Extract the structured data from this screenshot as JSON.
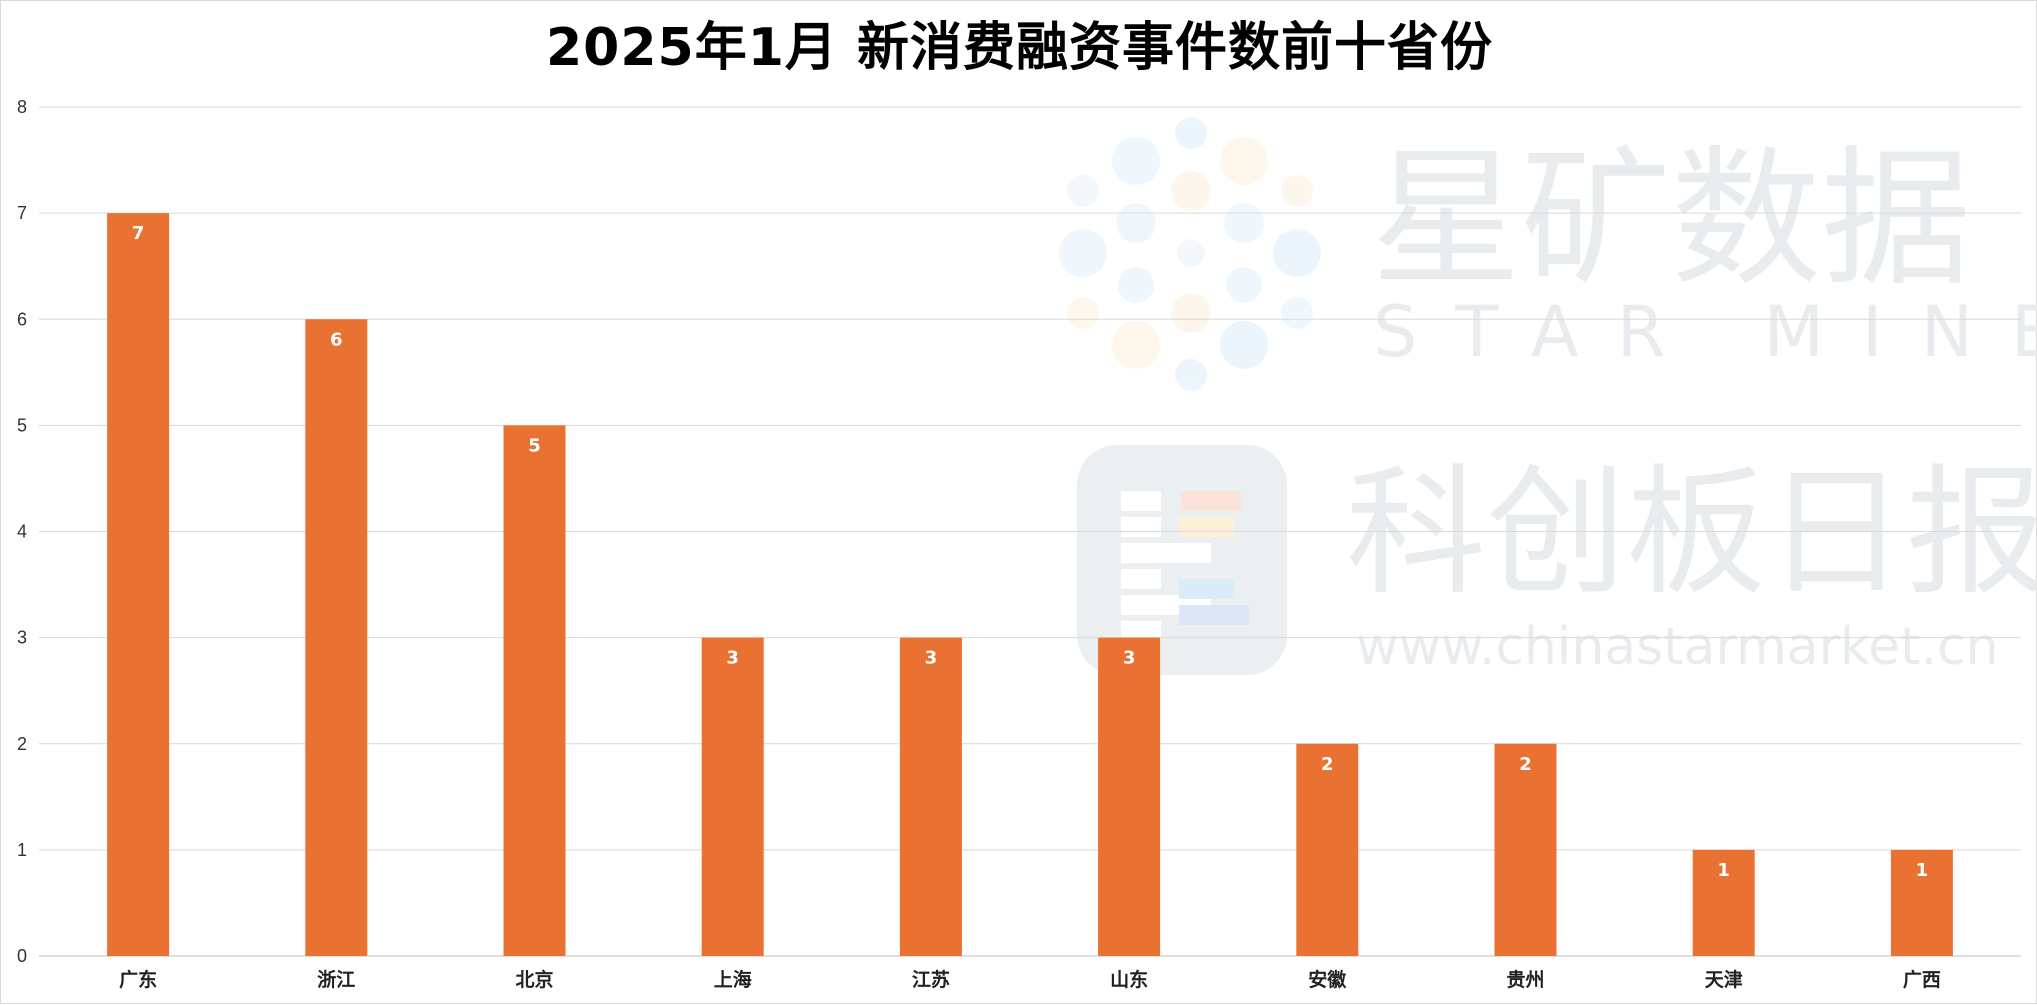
{
  "title": "2025年1月 新消费融资事件数前十省份",
  "watermark": {
    "brand_cn": "星矿数据",
    "brand_en": "STAR MINE",
    "publisher_cn": "科创板日报",
    "url": "www.chinastarmarket.cn"
  },
  "colors": {
    "bar": "#e97132",
    "grid": "#d9d9d9",
    "axis": "#bfbfbf",
    "data_label": "#ffffff"
  },
  "chart_data": {
    "type": "bar",
    "title": "2025年1月 新消费融资事件数前十省份",
    "xlabel": "",
    "ylabel": "",
    "categories": [
      "广东",
      "浙江",
      "北京",
      "上海",
      "江苏",
      "山东",
      "安徽",
      "贵州",
      "天津",
      "广西"
    ],
    "values": [
      7,
      6,
      5,
      3,
      3,
      3,
      2,
      2,
      1,
      1
    ],
    "ylim": [
      0,
      8
    ],
    "yticks": [
      0,
      1,
      2,
      3,
      4,
      5,
      6,
      7,
      8
    ],
    "grid": true,
    "legend": "none",
    "data_labels": true
  }
}
